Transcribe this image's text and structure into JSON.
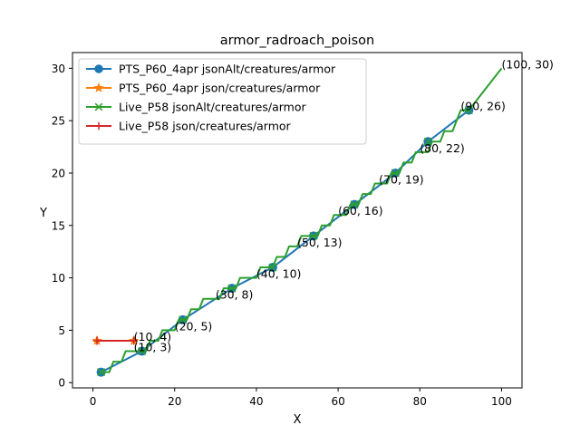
{
  "chart_data": {
    "type": "line",
    "title": "armor_radroach_poison",
    "xlabel": "X",
    "ylabel": "Y",
    "xlim": [
      -5,
      105
    ],
    "ylim": [
      -0.5,
      31.5
    ],
    "x_ticks": [
      0,
      20,
      40,
      60,
      80,
      100
    ],
    "y_ticks": [
      0,
      5,
      10,
      15,
      20,
      25,
      30
    ],
    "grid": false,
    "legend_position": "upper-left",
    "series": [
      {
        "name": "PTS_P60_4apr jsonAlt/creatures/armor",
        "color": "#1f77b4",
        "marker": "circle",
        "points": [
          [
            2,
            1
          ],
          [
            12,
            3
          ],
          [
            22,
            6
          ],
          [
            34,
            9
          ],
          [
            44,
            11
          ],
          [
            54,
            14
          ],
          [
            64,
            17
          ],
          [
            74,
            20
          ],
          [
            82,
            23
          ],
          [
            92,
            26
          ]
        ]
      },
      {
        "name": "PTS_P60_4apr json/creatures/armor",
        "color": "#ff7f0e",
        "marker": "star",
        "points": [
          [
            1,
            4
          ],
          [
            10,
            4
          ]
        ]
      },
      {
        "name": "Live_P58 jsonAlt/creatures/armor",
        "color": "#2ca02c",
        "marker": "x",
        "points": [
          [
            2,
            1
          ],
          [
            3,
            1
          ],
          [
            4,
            1
          ],
          [
            5,
            2
          ],
          [
            7,
            2
          ],
          [
            8,
            3
          ],
          [
            12,
            3
          ],
          [
            13,
            3
          ],
          [
            14,
            4
          ],
          [
            16,
            4
          ],
          [
            17,
            5
          ],
          [
            19,
            5
          ],
          [
            20,
            5
          ],
          [
            21,
            6
          ],
          [
            23,
            6
          ],
          [
            24,
            7
          ],
          [
            26,
            7
          ],
          [
            27,
            8
          ],
          [
            30,
            8
          ],
          [
            31,
            8
          ],
          [
            32,
            9
          ],
          [
            35,
            9
          ],
          [
            36,
            10
          ],
          [
            38,
            10
          ],
          [
            39,
            10
          ],
          [
            40,
            10
          ],
          [
            41,
            11
          ],
          [
            42,
            11
          ],
          [
            44,
            11
          ],
          [
            45,
            12
          ],
          [
            47,
            12
          ],
          [
            48,
            13
          ],
          [
            50,
            13
          ],
          [
            51,
            14
          ],
          [
            54,
            14
          ],
          [
            55,
            14
          ],
          [
            56,
            15
          ],
          [
            58,
            15
          ],
          [
            59,
            16
          ],
          [
            60,
            16
          ],
          [
            62,
            16
          ],
          [
            63,
            17
          ],
          [
            65,
            17
          ],
          [
            66,
            18
          ],
          [
            68,
            18
          ],
          [
            69,
            19
          ],
          [
            70,
            19
          ],
          [
            72,
            19
          ],
          [
            73,
            20
          ],
          [
            75,
            20
          ],
          [
            76,
            21
          ],
          [
            78,
            21
          ],
          [
            79,
            22
          ],
          [
            80,
            22
          ],
          [
            82,
            22
          ],
          [
            83,
            23
          ],
          [
            85,
            23
          ],
          [
            86,
            24
          ],
          [
            88,
            24
          ],
          [
            89,
            25
          ],
          [
            90,
            26
          ],
          [
            92,
            26
          ],
          [
            100,
            30
          ]
        ],
        "markers": [
          [
            2,
            1
          ],
          [
            12,
            3
          ],
          [
            22,
            6
          ],
          [
            34,
            9
          ],
          [
            44,
            11
          ],
          [
            54,
            14
          ],
          [
            64,
            17
          ],
          [
            74,
            20
          ],
          [
            82,
            23
          ],
          [
            92,
            26
          ]
        ]
      },
      {
        "name": "Live_P58 json/creatures/armor",
        "color": "#d62728",
        "marker": "plus",
        "points": [
          [
            1,
            4
          ],
          [
            10,
            4
          ]
        ]
      }
    ],
    "annotations": [
      {
        "text": "(10, 4)",
        "x": 10,
        "y": 4
      },
      {
        "text": "(10, 3)",
        "x": 10,
        "y": 3
      },
      {
        "text": "(20, 5)",
        "x": 20,
        "y": 5
      },
      {
        "text": "(30, 8)",
        "x": 30,
        "y": 8
      },
      {
        "text": "(40, 10)",
        "x": 40,
        "y": 10
      },
      {
        "text": "(50, 13)",
        "x": 50,
        "y": 13
      },
      {
        "text": "(60, 16)",
        "x": 60,
        "y": 16
      },
      {
        "text": "(70, 19)",
        "x": 70,
        "y": 19
      },
      {
        "text": "(80, 22)",
        "x": 80,
        "y": 22
      },
      {
        "text": "(90, 26)",
        "x": 90,
        "y": 26
      },
      {
        "text": "(100, 30)",
        "x": 100,
        "y": 30
      }
    ]
  }
}
